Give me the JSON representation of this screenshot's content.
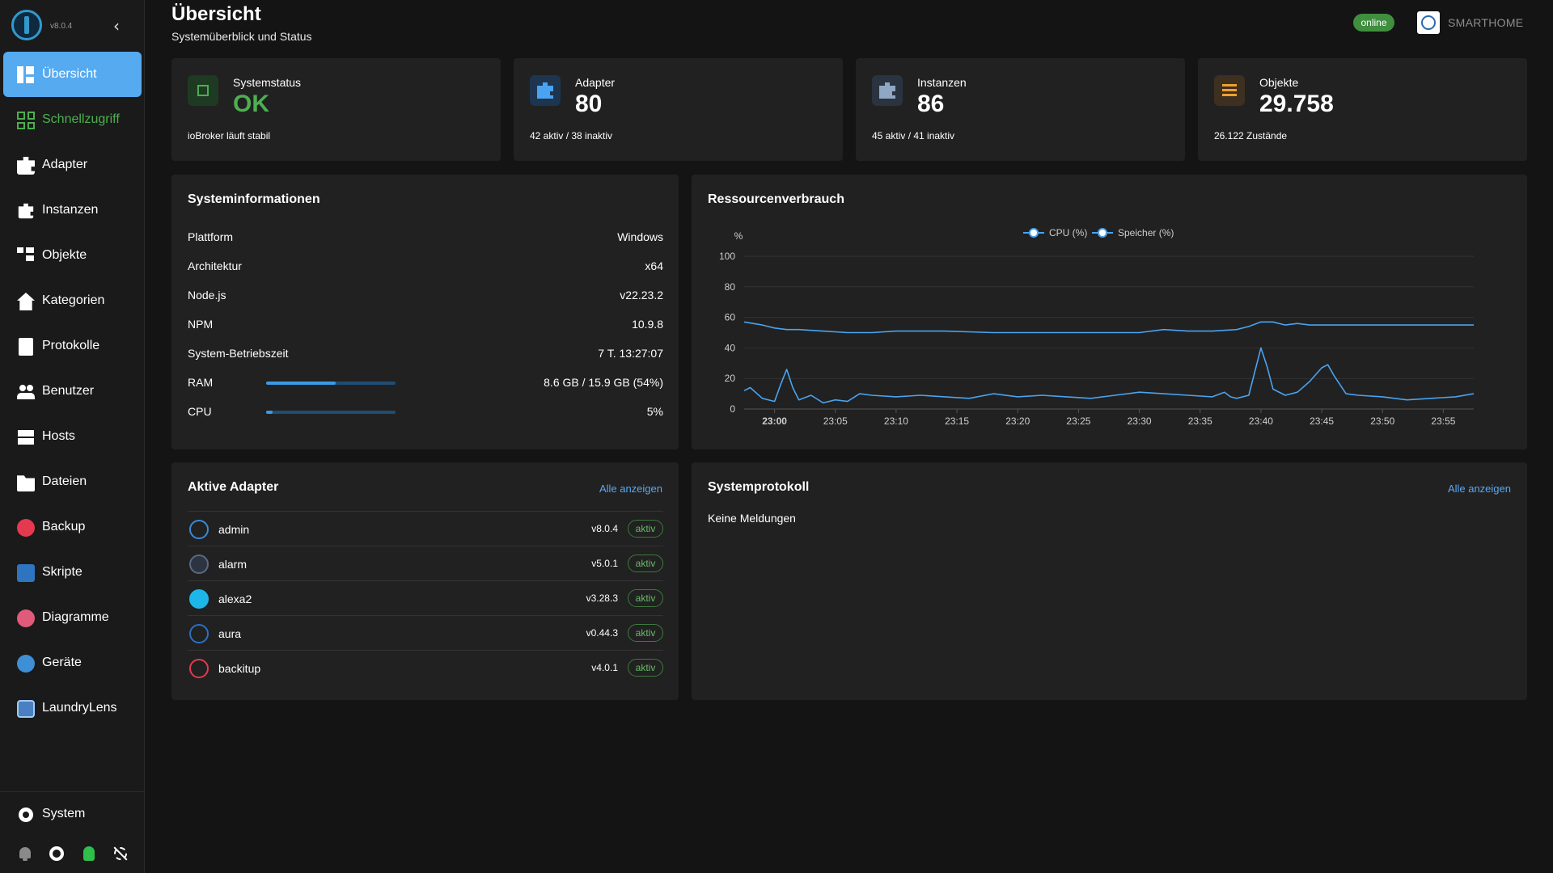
{
  "sidebar": {
    "version": "v8.0.4",
    "collapse_glyph": "‹",
    "items": [
      {
        "label": "Übersicht",
        "icon": "dashboard-icon"
      },
      {
        "label": "Schnellzugriff",
        "icon": "grid-icon"
      },
      {
        "label": "Adapter",
        "icon": "puzzle-icon"
      },
      {
        "label": "Instanzen",
        "icon": "instances-icon"
      },
      {
        "label": "Objekte",
        "icon": "tree-icon"
      },
      {
        "label": "Kategorien",
        "icon": "home-icon"
      },
      {
        "label": "Protokolle",
        "icon": "log-icon"
      },
      {
        "label": "Benutzer",
        "icon": "users-icon"
      },
      {
        "label": "Hosts",
        "icon": "hosts-icon"
      },
      {
        "label": "Dateien",
        "icon": "folder-icon"
      },
      {
        "label": "Backup",
        "icon": "backup-icon"
      },
      {
        "label": "Skripte",
        "icon": "javascript-icon"
      },
      {
        "label": "Diagramme",
        "icon": "charts-icon"
      },
      {
        "label": "Geräte",
        "icon": "devices-icon"
      },
      {
        "label": "LaundryLens",
        "icon": "laundrylens-icon"
      }
    ],
    "system_label": "System"
  },
  "header": {
    "title": "Übersicht",
    "subtitle": "Systemüberblick und Status",
    "status_badge": "online",
    "host_name": "SMARTHOME"
  },
  "stats": [
    {
      "label": "Systemstatus",
      "value": "OK",
      "sub": "ioBroker läuft stabil",
      "value_color": "#4caf50",
      "icon_bg": "#1f3a22",
      "icon": "chip-icon"
    },
    {
      "label": "Adapter",
      "value": "80",
      "sub": "42 aktiv / 38 inaktiv",
      "value_color": "#ffffff",
      "icon_bg": "#1e3550",
      "icon": "puzzle-icon"
    },
    {
      "label": "Instanzen",
      "value": "86",
      "sub": "45 aktiv / 41 inaktiv",
      "value_color": "#ffffff",
      "icon_bg": "#2a3440",
      "icon": "instances-icon"
    },
    {
      "label": "Objekte",
      "value": "29.758",
      "sub": "26.122 Zustände",
      "value_color": "#ffffff",
      "icon_bg": "#3d3020",
      "icon": "list-icon"
    }
  ],
  "sysinfo": {
    "title": "Systeminformationen",
    "rows": [
      {
        "key": "Plattform",
        "value": "Windows"
      },
      {
        "key": "Architektur",
        "value": "x64"
      },
      {
        "key": "Node.js",
        "value": "v22.23.2"
      },
      {
        "key": "NPM",
        "value": "10.9.8"
      },
      {
        "key": "System-Betriebszeit",
        "value": "7 T. 13:27:07"
      },
      {
        "key": "RAM",
        "value": "8.6 GB / 15.9 GB (54%)",
        "progress": 0.54
      },
      {
        "key": "CPU",
        "value": "5%",
        "progress": 0.05
      }
    ]
  },
  "resources": {
    "title": "Ressourcenverbrauch"
  },
  "chart_data": {
    "type": "line",
    "ylabel": "%",
    "ylim": [
      0,
      100
    ],
    "yticks": [
      0,
      20,
      40,
      60,
      80,
      100
    ],
    "x_ticks": [
      "23:00",
      "23:05",
      "23:10",
      "23:15",
      "23:20",
      "23:25",
      "23:30",
      "23:35",
      "23:40",
      "23:45",
      "23:50",
      "23:55"
    ],
    "x_range_minutes": [
      -2.5,
      57.5
    ],
    "legend_position": "top-center",
    "grid": true,
    "series": [
      {
        "name": "CPU (%)",
        "color": "#4aa3f0",
        "x": [
          -2.5,
          -2,
          -1,
          0,
          0.5,
          1,
          1.5,
          2,
          3,
          4,
          5,
          6,
          7,
          8,
          10,
          12,
          14,
          16,
          18,
          20,
          22,
          24,
          26,
          28,
          30,
          32,
          34,
          36,
          37,
          37.5,
          38,
          39,
          40,
          40.5,
          41,
          42,
          43,
          44,
          45,
          45.5,
          46,
          47,
          48,
          50,
          52,
          54,
          56,
          57.5
        ],
        "y": [
          12,
          14,
          7,
          5,
          16,
          26,
          14,
          6,
          9,
          4,
          6,
          5,
          10,
          9,
          8,
          9,
          8,
          7,
          10,
          8,
          9,
          8,
          7,
          9,
          11,
          10,
          9,
          8,
          11,
          8,
          7,
          9,
          40,
          28,
          13,
          9,
          11,
          18,
          27,
          29,
          22,
          10,
          9,
          8,
          6,
          7,
          8,
          10
        ]
      },
      {
        "name": "Speicher (%)",
        "color": "#4aa3f0",
        "x": [
          -2.5,
          -1,
          0,
          1,
          2,
          4,
          6,
          8,
          10,
          14,
          18,
          22,
          26,
          30,
          32,
          34,
          36,
          38,
          39,
          40,
          41,
          42,
          43,
          44,
          48,
          52,
          56,
          57.5
        ],
        "y": [
          57,
          55,
          53,
          52,
          52,
          51,
          50,
          50,
          51,
          51,
          50,
          50,
          50,
          50,
          52,
          51,
          51,
          52,
          54,
          57,
          57,
          55,
          56,
          55,
          55,
          55,
          55,
          55
        ]
      }
    ]
  },
  "adapters": {
    "title": "Aktive Adapter",
    "link": "Alle anzeigen",
    "rows": [
      {
        "name": "admin",
        "version": "v8.0.4",
        "status": "aktiv",
        "color": "#3b8ad9"
      },
      {
        "name": "alarm",
        "version": "v5.0.1",
        "status": "aktiv",
        "color": "#5a6a80"
      },
      {
        "name": "alexa2",
        "version": "v3.28.3",
        "status": "aktiv",
        "color": "#1cb7e8"
      },
      {
        "name": "aura",
        "version": "v0.44.3",
        "status": "aktiv",
        "color": "#2d6fc4"
      },
      {
        "name": "backitup",
        "version": "v4.0.1",
        "status": "aktiv",
        "color": "#e53950"
      }
    ]
  },
  "syslog": {
    "title": "Systemprotokoll",
    "link": "Alle anzeigen",
    "empty": "Keine Meldungen"
  }
}
